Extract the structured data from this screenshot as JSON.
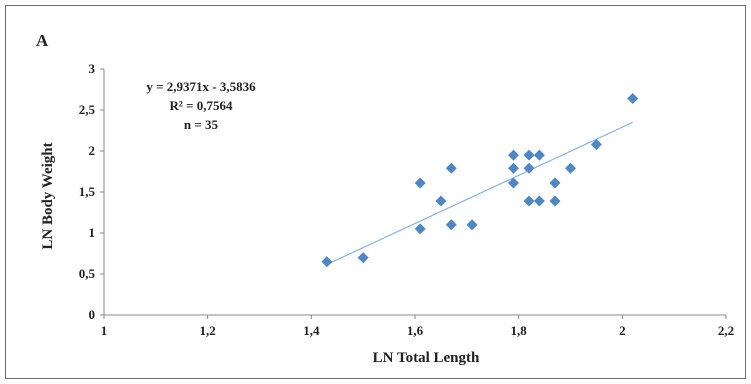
{
  "chart_data": {
    "type": "scatter",
    "panel_label": "A",
    "xlabel": "LN Total Length",
    "ylabel": "LN Body Weight",
    "xlim": [
      1,
      2.2
    ],
    "ylim": [
      0,
      3
    ],
    "x_ticks": [
      {
        "value": 1,
        "label": "1"
      },
      {
        "value": 1.2,
        "label": "1,2"
      },
      {
        "value": 1.4,
        "label": "1,4"
      },
      {
        "value": 1.6,
        "label": "1,6"
      },
      {
        "value": 1.8,
        "label": "1,8"
      },
      {
        "value": 2,
        "label": "2"
      },
      {
        "value": 2.2,
        "label": "2,2"
      }
    ],
    "y_ticks": [
      {
        "value": 0,
        "label": "0"
      },
      {
        "value": 0.5,
        "label": "0,5"
      },
      {
        "value": 1,
        "label": "1"
      },
      {
        "value": 1.5,
        "label": "1,5"
      },
      {
        "value": 2,
        "label": "2"
      },
      {
        "value": 2.5,
        "label": "2,5"
      },
      {
        "value": 3,
        "label": "3"
      }
    ],
    "grid": false,
    "marker_color": "#4f86c6",
    "trendline_color": "#8db4e2",
    "trendline": {
      "slope": 2.9371,
      "intercept": -3.5836,
      "x_range": [
        1.43,
        2.02
      ]
    },
    "annotation": {
      "lines": [
        "y = 2,9371x - 3,5836",
        "R² = 0,7564",
        "n = 35"
      ],
      "position": "top-left"
    },
    "points": [
      {
        "x": 1.43,
        "y": 0.65
      },
      {
        "x": 1.5,
        "y": 0.7
      },
      {
        "x": 1.61,
        "y": 1.05
      },
      {
        "x": 1.61,
        "y": 1.61
      },
      {
        "x": 1.65,
        "y": 1.39
      },
      {
        "x": 1.67,
        "y": 1.1
      },
      {
        "x": 1.67,
        "y": 1.79
      },
      {
        "x": 1.71,
        "y": 1.1
      },
      {
        "x": 1.79,
        "y": 1.61
      },
      {
        "x": 1.79,
        "y": 1.79
      },
      {
        "x": 1.79,
        "y": 1.95
      },
      {
        "x": 1.82,
        "y": 1.39
      },
      {
        "x": 1.82,
        "y": 1.79
      },
      {
        "x": 1.82,
        "y": 1.95
      },
      {
        "x": 1.84,
        "y": 1.39
      },
      {
        "x": 1.84,
        "y": 1.95
      },
      {
        "x": 1.87,
        "y": 1.39
      },
      {
        "x": 1.87,
        "y": 1.61
      },
      {
        "x": 1.9,
        "y": 1.79
      },
      {
        "x": 1.95,
        "y": 2.08
      },
      {
        "x": 2.02,
        "y": 2.64
      }
    ]
  }
}
